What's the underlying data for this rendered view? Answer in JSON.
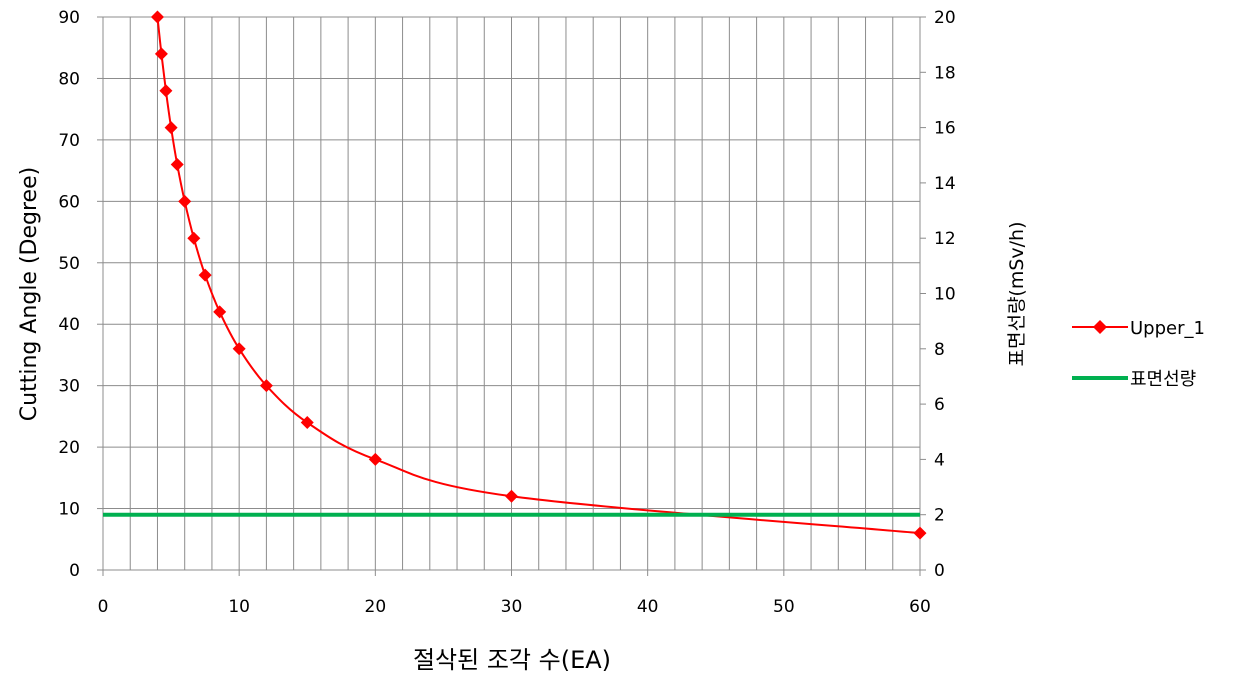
{
  "chart_data": {
    "type": "line",
    "xlabel": "절삭된 조각 수(EA)",
    "ylabel": "Cutting Angle (Degree)",
    "y2label": "표면선량(mSv/h)",
    "xlim": [
      0,
      60
    ],
    "ylim": [
      0,
      90
    ],
    "y2lim": [
      0,
      20
    ],
    "x_ticks": [
      0,
      10,
      20,
      30,
      40,
      50,
      60
    ],
    "y_ticks": [
      0,
      10,
      20,
      30,
      40,
      50,
      60,
      70,
      80,
      90
    ],
    "y2_ticks": [
      0,
      2,
      4,
      6,
      8,
      10,
      12,
      14,
      16,
      18,
      20
    ],
    "x_minor_step": 2,
    "grid": true,
    "legend_position": "right",
    "series": [
      {
        "name": "Upper_1",
        "axis": "left",
        "color": "#ff0000",
        "marker": "diamond",
        "x": [
          4,
          4.29,
          4.62,
          5,
          5.45,
          6,
          6.67,
          7.5,
          8.57,
          10,
          12,
          15,
          20,
          30,
          60
        ],
        "y": [
          90,
          84,
          78,
          72,
          66,
          60,
          54,
          48,
          42,
          36,
          30,
          24,
          18,
          12,
          6
        ]
      },
      {
        "name": "표면선량",
        "axis": "right",
        "color": "#00b050",
        "marker": "none",
        "x": [
          0,
          60
        ],
        "y": [
          2,
          2
        ]
      }
    ]
  }
}
